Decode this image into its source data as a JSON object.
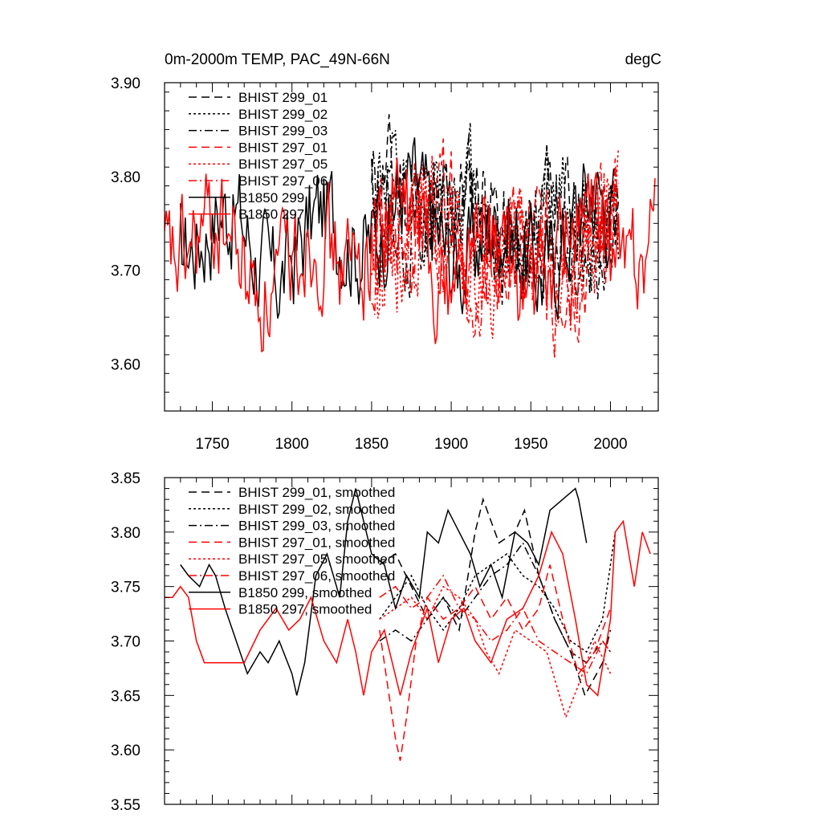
{
  "figure": {
    "title_left": "0m-2000m TEMP, PAC_49N-66N",
    "title_right": "degC"
  },
  "chart_data": [
    {
      "type": "line",
      "name": "annual",
      "title": "0m-2000m TEMP, PAC_49N-66N",
      "units": "degC",
      "xlim": [
        1720,
        2030
      ],
      "ylim": [
        3.55,
        3.9
      ],
      "xticks": [
        1750,
        1800,
        1850,
        1900,
        1950,
        2000
      ],
      "xtick_labels": [
        "1750",
        "1800",
        "1850",
        "1900",
        "1950",
        "2000"
      ],
      "yticks": [
        3.6,
        3.7,
        3.8,
        3.9
      ],
      "ytick_labels": [
        "3.60",
        "3.70",
        "3.80",
        "3.90"
      ],
      "legend_position": "top-left",
      "series": [
        {
          "name": "BHIST 299_01",
          "color": "#000000",
          "dash": "long-dash",
          "x_start": 1850,
          "x_end": 2005,
          "mean": 3.76,
          "amp": 0.05,
          "noise": 0.05,
          "seed": 11,
          "kind": "annual"
        },
        {
          "name": "BHIST 299_02",
          "color": "#000000",
          "dash": "dot",
          "x_start": 1850,
          "x_end": 2005,
          "mean": 3.76,
          "amp": 0.05,
          "noise": 0.05,
          "seed": 12,
          "kind": "annual"
        },
        {
          "name": "BHIST 299_03",
          "color": "#000000",
          "dash": "dash-dot",
          "x_start": 1850,
          "x_end": 2005,
          "mean": 3.75,
          "amp": 0.05,
          "noise": 0.05,
          "seed": 13,
          "kind": "annual"
        },
        {
          "name": "BHIST 297_01",
          "color": "#ff0000",
          "dash": "long-dash",
          "x_start": 1850,
          "x_end": 2005,
          "mean": 3.73,
          "amp": 0.05,
          "noise": 0.05,
          "seed": 14,
          "kind": "annual"
        },
        {
          "name": "BHIST 297_05",
          "color": "#ff0000",
          "dash": "dot",
          "x_start": 1850,
          "x_end": 2005,
          "mean": 3.72,
          "amp": 0.05,
          "noise": 0.05,
          "seed": 15,
          "kind": "annual"
        },
        {
          "name": "BHIST 297_06",
          "color": "#ff0000",
          "dash": "dash-dot",
          "x_start": 1850,
          "x_end": 2005,
          "mean": 3.72,
          "amp": 0.05,
          "noise": 0.05,
          "seed": 16,
          "kind": "annual"
        },
        {
          "name": "B1850 299",
          "color": "#000000",
          "dash": "solid",
          "x_start": 1730,
          "x_end": 2002,
          "mean": 3.74,
          "amp": 0.05,
          "noise": 0.05,
          "seed": 17,
          "kind": "annual"
        },
        {
          "name": "B1850 297",
          "color": "#ff0000",
          "dash": "solid",
          "x_start": 1720,
          "x_end": 2028,
          "mean": 3.72,
          "amp": 0.05,
          "noise": 0.05,
          "seed": 18,
          "kind": "annual"
        }
      ]
    },
    {
      "type": "line",
      "name": "smoothed",
      "xlim": [
        1720,
        2030
      ],
      "ylim": [
        3.55,
        3.85
      ],
      "xticks": [
        1750,
        1800,
        1850,
        1900,
        1950,
        2000
      ],
      "yticks": [
        3.55,
        3.6,
        3.65,
        3.7,
        3.75,
        3.8,
        3.85
      ],
      "ytick_labels": [
        "3.55",
        "3.60",
        "3.65",
        "3.70",
        "3.75",
        "3.80",
        "3.85"
      ],
      "legend_position": "top-left",
      "series": [
        {
          "name": "BHIST 299_01, smoothed",
          "color": "#000000",
          "dash": "long-dash",
          "x": [
            1855,
            1865,
            1875,
            1885,
            1895,
            1905,
            1915,
            1920,
            1930,
            1940,
            1946,
            1955,
            1965,
            1975,
            1984,
            1995,
            2000
          ],
          "y": [
            3.77,
            3.78,
            3.75,
            3.72,
            3.74,
            3.71,
            3.8,
            3.83,
            3.79,
            3.8,
            3.82,
            3.76,
            3.72,
            3.69,
            3.65,
            3.68,
            3.71
          ]
        },
        {
          "name": "BHIST 299_02, smoothed",
          "color": "#000000",
          "dash": "dot",
          "x": [
            1855,
            1865,
            1875,
            1885,
            1895,
            1905,
            1915,
            1925,
            1935,
            1945,
            1955,
            1965,
            1975,
            1985,
            1995,
            2003
          ],
          "y": [
            3.72,
            3.74,
            3.76,
            3.73,
            3.71,
            3.73,
            3.76,
            3.77,
            3.78,
            3.76,
            3.75,
            3.73,
            3.7,
            3.69,
            3.72,
            3.8
          ]
        },
        {
          "name": "BHIST 299_03, smoothed",
          "color": "#000000",
          "dash": "dash-dot",
          "x": [
            1855,
            1865,
            1875,
            1885,
            1895,
            1905,
            1915,
            1925,
            1935,
            1945,
            1955,
            1965,
            1975,
            1985,
            1995,
            2000
          ],
          "y": [
            3.7,
            3.71,
            3.7,
            3.72,
            3.74,
            3.72,
            3.74,
            3.76,
            3.77,
            3.79,
            3.76,
            3.72,
            3.69,
            3.68,
            3.7,
            3.69
          ]
        },
        {
          "name": "BHIST 297_01, smoothed",
          "color": "#ff0000",
          "dash": "long-dash",
          "x": [
            1855,
            1860,
            1865,
            1868,
            1872,
            1878,
            1885,
            1895,
            1905,
            1915,
            1925,
            1935,
            1945,
            1955,
            1962,
            1970,
            1980,
            1990,
            2000
          ],
          "y": [
            3.71,
            3.66,
            3.61,
            3.59,
            3.63,
            3.7,
            3.74,
            3.72,
            3.73,
            3.75,
            3.72,
            3.74,
            3.71,
            3.73,
            3.77,
            3.72,
            3.67,
            3.69,
            3.73
          ]
        },
        {
          "name": "BHIST 297_05, smoothed",
          "color": "#ff0000",
          "dash": "dot",
          "x": [
            1855,
            1865,
            1875,
            1885,
            1895,
            1905,
            1915,
            1922,
            1930,
            1940,
            1950,
            1960,
            1966,
            1972,
            1980,
            1990,
            2000
          ],
          "y": [
            3.72,
            3.73,
            3.74,
            3.72,
            3.75,
            3.74,
            3.72,
            3.69,
            3.67,
            3.71,
            3.7,
            3.69,
            3.66,
            3.63,
            3.66,
            3.7,
            3.67
          ]
        },
        {
          "name": "BHIST 297_06, smoothed",
          "color": "#ff0000",
          "dash": "dash-dot",
          "x": [
            1855,
            1865,
            1875,
            1885,
            1895,
            1905,
            1915,
            1925,
            1935,
            1945,
            1955,
            1965,
            1975,
            1985,
            1995,
            2000
          ],
          "y": [
            3.74,
            3.75,
            3.73,
            3.74,
            3.76,
            3.73,
            3.72,
            3.7,
            3.71,
            3.73,
            3.7,
            3.69,
            3.68,
            3.67,
            3.7,
            3.69
          ]
        },
        {
          "name": "B1850 299, smoothed",
          "color": "#000000",
          "dash": "solid",
          "x": [
            1730,
            1735,
            1742,
            1748,
            1752,
            1758,
            1765,
            1772,
            1780,
            1785,
            1792,
            1800,
            1803,
            1808,
            1815,
            1822,
            1830,
            1835,
            1840,
            1850,
            1858,
            1865,
            1872,
            1880,
            1885,
            1892,
            1898,
            1905,
            1912,
            1918,
            1925,
            1932,
            1940,
            1948,
            1955,
            1962,
            1970,
            1978,
            1980,
            1985
          ],
          "y": [
            3.77,
            3.76,
            3.75,
            3.77,
            3.76,
            3.73,
            3.7,
            3.67,
            3.69,
            3.68,
            3.7,
            3.67,
            3.65,
            3.68,
            3.76,
            3.78,
            3.74,
            3.81,
            3.84,
            3.78,
            3.77,
            3.73,
            3.76,
            3.74,
            3.8,
            3.79,
            3.82,
            3.8,
            3.78,
            3.75,
            3.77,
            3.74,
            3.8,
            3.79,
            3.77,
            3.82,
            3.83,
            3.84,
            3.83,
            3.79
          ]
        },
        {
          "name": "B1850 297, smoothed",
          "color": "#ff0000",
          "dash": "solid",
          "x": [
            1720,
            1725,
            1730,
            1735,
            1740,
            1745,
            1752,
            1760,
            1770,
            1780,
            1790,
            1798,
            1805,
            1812,
            1820,
            1828,
            1835,
            1840,
            1845,
            1850,
            1858,
            1868,
            1875,
            1885,
            1892,
            1900,
            1908,
            1915,
            1925,
            1935,
            1945,
            1955,
            1963,
            1970,
            1978,
            1985,
            1992,
            2000,
            2003,
            2008,
            2015,
            2020,
            2025
          ],
          "y": [
            3.74,
            3.74,
            3.75,
            3.74,
            3.7,
            3.68,
            3.68,
            3.68,
            3.68,
            3.71,
            3.73,
            3.71,
            3.72,
            3.74,
            3.7,
            3.68,
            3.72,
            3.69,
            3.65,
            3.69,
            3.71,
            3.65,
            3.69,
            3.73,
            3.68,
            3.72,
            3.73,
            3.7,
            3.68,
            3.72,
            3.73,
            3.76,
            3.8,
            3.78,
            3.72,
            3.66,
            3.65,
            3.72,
            3.8,
            3.81,
            3.75,
            3.8,
            3.78
          ]
        }
      ]
    }
  ]
}
